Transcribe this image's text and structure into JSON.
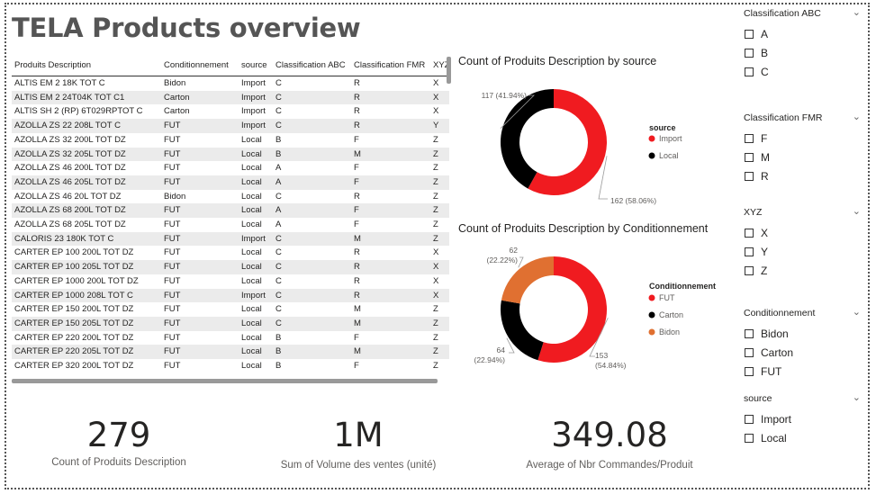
{
  "title": "TELA Products overview",
  "table": {
    "columns": [
      "Produits Description",
      "Conditionnement",
      "source",
      "Classification ABC",
      "Classification FMR",
      "XYZ"
    ],
    "rows": [
      [
        "ALTIS EM 2 18K TOT C",
        "Bidon",
        "Import",
        "C",
        "R",
        "X"
      ],
      [
        "ALTIS EM 2 24T04K TOT C1",
        "Carton",
        "Import",
        "C",
        "R",
        "X"
      ],
      [
        "ALTIS SH 2 (RP) 6T029RPTOT C",
        "Carton",
        "Import",
        "C",
        "R",
        "X"
      ],
      [
        "AZOLLA ZS 22 208L TOT C",
        "FUT",
        "Import",
        "C",
        "R",
        "Y"
      ],
      [
        "AZOLLA ZS 32 200L TOT DZ",
        "FUT",
        "Local",
        "B",
        "F",
        "Z"
      ],
      [
        "AZOLLA ZS 32 205L TOT DZ",
        "FUT",
        "Local",
        "B",
        "M",
        "Z"
      ],
      [
        "AZOLLA ZS 46 200L TOT DZ",
        "FUT",
        "Local",
        "A",
        "F",
        "Z"
      ],
      [
        "AZOLLA ZS 46 205L TOT DZ",
        "FUT",
        "Local",
        "A",
        "F",
        "Z"
      ],
      [
        "AZOLLA ZS 46 20L TOT DZ",
        "Bidon",
        "Local",
        "C",
        "R",
        "Z"
      ],
      [
        "AZOLLA ZS 68 200L TOT DZ",
        "FUT",
        "Local",
        "A",
        "F",
        "Z"
      ],
      [
        "AZOLLA ZS 68 205L TOT DZ",
        "FUT",
        "Local",
        "A",
        "F",
        "Z"
      ],
      [
        "CALORIS 23 180K TOT C",
        "FUT",
        "Import",
        "C",
        "M",
        "Z"
      ],
      [
        "CARTER EP 100 200L TOT DZ",
        "FUT",
        "Local",
        "C",
        "R",
        "X"
      ],
      [
        "CARTER EP 100 205L TOT DZ",
        "FUT",
        "Local",
        "C",
        "R",
        "X"
      ],
      [
        "CARTER EP 1000 200L TOT DZ",
        "FUT",
        "Local",
        "C",
        "R",
        "X"
      ],
      [
        "CARTER EP 1000 208L TOT C",
        "FUT",
        "Import",
        "C",
        "R",
        "X"
      ],
      [
        "CARTER EP 150 200L TOT DZ",
        "FUT",
        "Local",
        "C",
        "M",
        "Z"
      ],
      [
        "CARTER EP 150 205L TOT DZ",
        "FUT",
        "Local",
        "C",
        "M",
        "Z"
      ],
      [
        "CARTER EP 220 200L TOT DZ",
        "FUT",
        "Local",
        "B",
        "F",
        "Z"
      ],
      [
        "CARTER EP 220 205L TOT DZ",
        "FUT",
        "Local",
        "B",
        "M",
        "Z"
      ],
      [
        "CARTER EP 320 200L TOT DZ",
        "FUT",
        "Local",
        "B",
        "F",
        "Z"
      ]
    ]
  },
  "chart_data": [
    {
      "type": "pie",
      "title": "Count of Produits Description by source",
      "legend_title": "source",
      "legend_position": "right",
      "categories": [
        "Import",
        "Local"
      ],
      "values": [
        162,
        117
      ],
      "percent_labels": [
        "162 (58.06%)",
        "117 (41.94%)"
      ],
      "colors": [
        "#f01b20",
        "#000000"
      ]
    },
    {
      "type": "pie",
      "title": "Count of Produits Description by Conditionnement",
      "legend_title": "Conditionnement",
      "legend_position": "right",
      "categories": [
        "FUT",
        "Carton",
        "Bidon"
      ],
      "values": [
        153,
        64,
        62
      ],
      "percent_labels": [
        [
          "153",
          "(54.84%)"
        ],
        [
          "64",
          "(22.94%)"
        ],
        [
          "62",
          "(22.22%)"
        ]
      ],
      "colors": [
        "#f01b20",
        "#000000",
        "#e07031"
      ]
    }
  ],
  "kpis": [
    {
      "value": "279",
      "label": "Count of Produits Description"
    },
    {
      "value": "1M",
      "label": "Sum of Volume des ventes (unité)"
    },
    {
      "value": "349.08",
      "label": "Average of Nbr Commandes/Produit"
    }
  ],
  "slicers": [
    {
      "title": "Classification ABC",
      "options": [
        "A",
        "B",
        "C"
      ]
    },
    {
      "title": "Classification FMR",
      "options": [
        "F",
        "M",
        "R"
      ]
    },
    {
      "title": "XYZ",
      "options": [
        "X",
        "Y",
        "Z"
      ]
    },
    {
      "title": "Conditionnement",
      "options": [
        "Bidon",
        "Carton",
        "FUT"
      ]
    },
    {
      "title": "source",
      "options": [
        "Import",
        "Local"
      ]
    }
  ],
  "icons": {
    "collapse": "chevron-down-icon",
    "check": "checkbox-icon"
  }
}
